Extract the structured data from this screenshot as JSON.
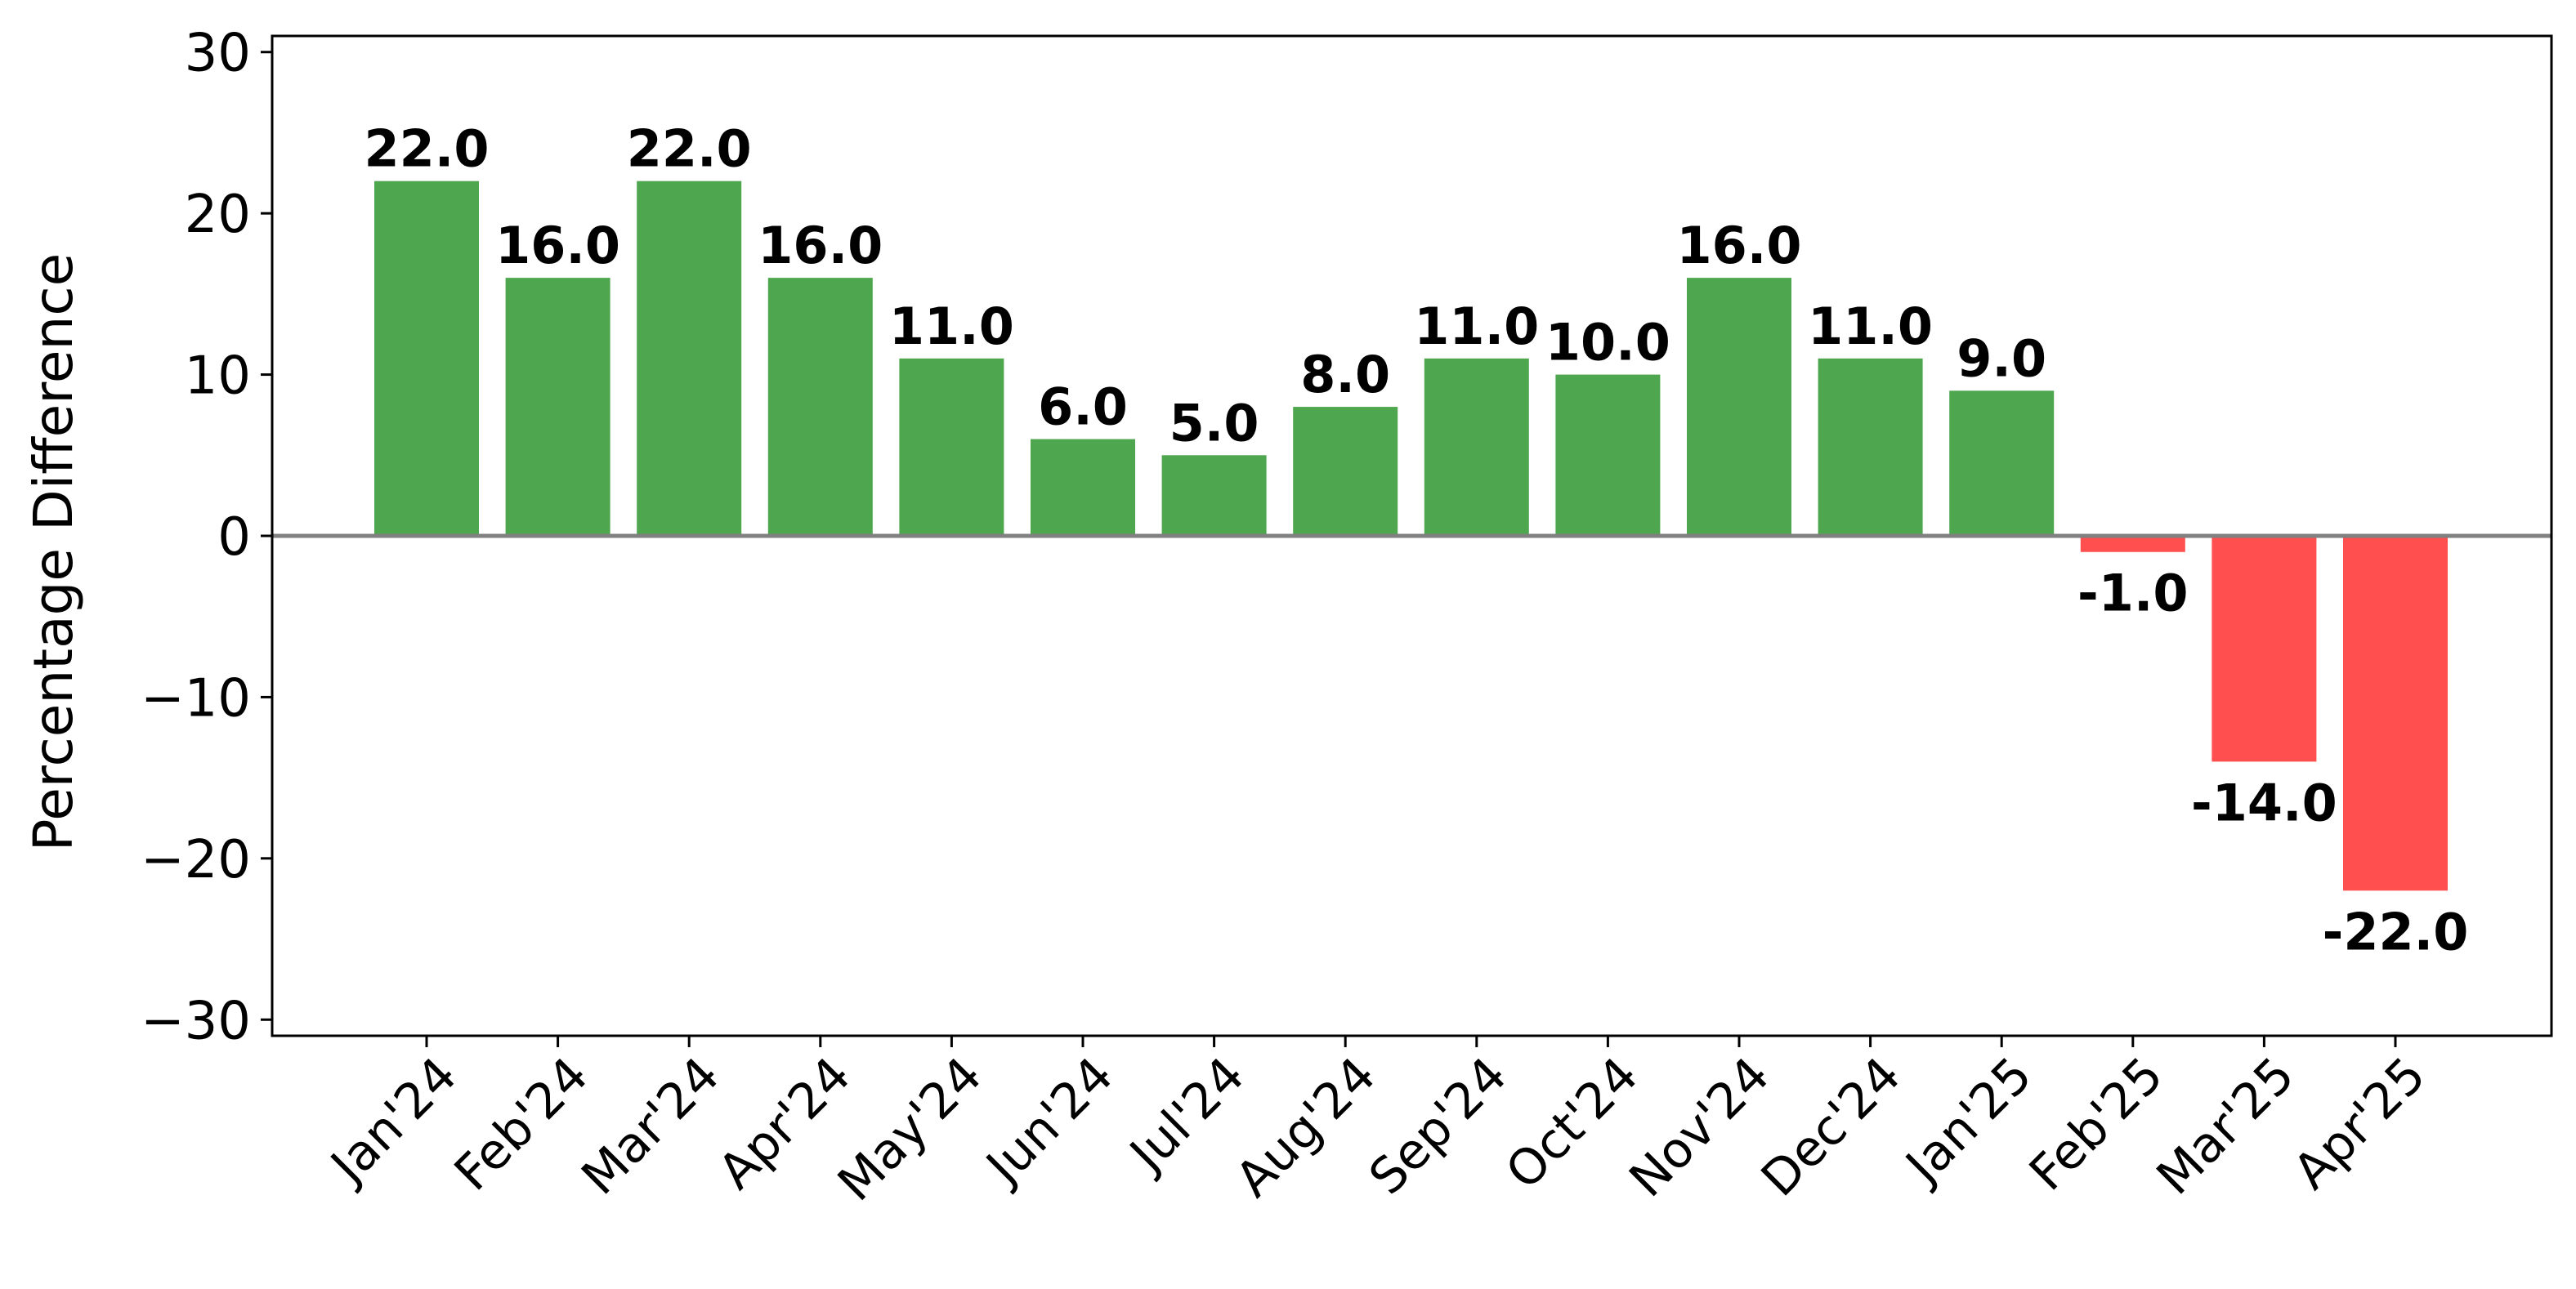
{
  "chart_data": {
    "type": "bar",
    "title": "",
    "xlabel": "",
    "ylabel": "Percentage Difference",
    "ylim": [
      -31,
      31
    ],
    "yticks": [
      30,
      20,
      10,
      0,
      -10,
      -20,
      -30
    ],
    "ytick_labels": [
      "30",
      "20",
      "10",
      "0",
      "−10",
      "−20",
      "−30"
    ],
    "categories": [
      "Jan'24",
      "Feb'24",
      "Mar'24",
      "Apr'24",
      "May'24",
      "Jun'24",
      "Jul'24",
      "Aug'24",
      "Sep'24",
      "Oct'24",
      "Nov'24",
      "Dec'24",
      "Jan'25",
      "Feb'25",
      "Mar'25",
      "Apr'25"
    ],
    "values": [
      22.0,
      16.0,
      22.0,
      16.0,
      11.0,
      6.0,
      5.0,
      8.0,
      11.0,
      10.0,
      16.0,
      11.0,
      9.0,
      -1.0,
      -14.0,
      -22.0
    ],
    "value_labels": [
      "22.0",
      "16.0",
      "22.0",
      "16.0",
      "11.0",
      "6.0",
      "5.0",
      "8.0",
      "11.0",
      "10.0",
      "16.0",
      "11.0",
      "9.0",
      "-1.0",
      "-14.0",
      "-22.0"
    ],
    "colors": {
      "positive": "#4ea64e",
      "negative": "#ff4f4f",
      "zero_line": "#808080"
    },
    "grid": false,
    "legend": false
  }
}
